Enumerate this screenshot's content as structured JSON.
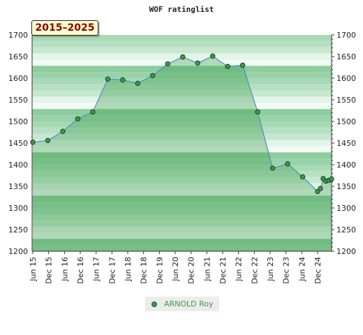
{
  "chart_data": {
    "type": "line",
    "title": "WOF ratinglist",
    "period_label": "2015–2025",
    "xlabel": "",
    "ylabel": "",
    "ylim": [
      1200,
      1700
    ],
    "y_ticks": [
      1200,
      1250,
      1300,
      1350,
      1400,
      1450,
      1500,
      1550,
      1600,
      1650,
      1700
    ],
    "x_tick_labels": [
      "Jun 15",
      "Dec 15",
      "Jun 16",
      "Dec 16",
      "Jun 17",
      "Dec 17",
      "Jun 18",
      "Dec 18",
      "Dec 19",
      "Jun 20",
      "Dec 20",
      "Jun 21",
      "Dec 21",
      "Jun 22",
      "Dec 22",
      "Jun 23",
      "Dec 23",
      "Jun 24",
      "Dec 24"
    ],
    "grid": true,
    "legend_position": "bottom-center",
    "series": [
      {
        "name": "ARNOLD Roy",
        "color": "#3a9a4a",
        "values": [
          1452,
          1456,
          1477,
          1506,
          1522,
          1598,
          1596,
          1588,
          1606,
          1633,
          1649,
          1635,
          1651,
          1627,
          1630,
          1522,
          1392,
          1402,
          1372,
          1338,
          1345,
          1368,
          1362,
          1364,
          1367
        ]
      }
    ]
  }
}
